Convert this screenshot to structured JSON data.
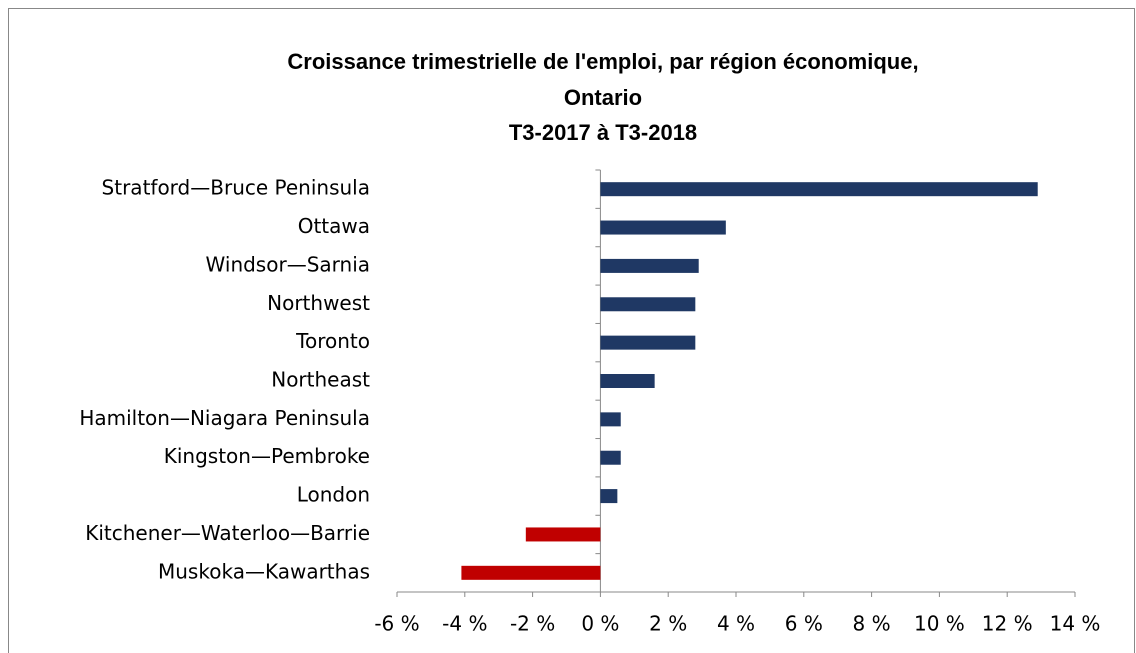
{
  "chart_data": {
    "type": "bar",
    "orientation": "horizontal",
    "title": [
      "Croissance trimestrielle de l'emploi, par région économique,",
      "Ontario",
      "T3-2017 à T3-2018"
    ],
    "categories": [
      "Stratford—Bruce Peninsula",
      "Ottawa",
      "Windsor—Sarnia",
      "Northwest",
      "Toronto",
      "Northeast",
      "Hamilton—Niagara Peninsula",
      "Kingston—Pembroke",
      "London",
      "Kitchener—Waterloo—Barrie",
      "Muskoka—Kawarthas"
    ],
    "values": [
      12.9,
      3.7,
      2.9,
      2.8,
      2.8,
      1.6,
      0.6,
      0.6,
      0.5,
      -2.2,
      -4.1
    ],
    "color": "#1f3864",
    "negative_color": "#c00000",
    "xlim": [
      -6,
      14
    ],
    "xticks": [
      {
        "value": -6,
        "label": "-6 %"
      },
      {
        "value": -4,
        "label": "-4 %"
      },
      {
        "value": -2,
        "label": "-2 %"
      },
      {
        "value": 0,
        "label": "0 %"
      },
      {
        "value": 2,
        "label": "2 %"
      },
      {
        "value": 4,
        "label": "4 %"
      },
      {
        "value": 6,
        "label": "6 %"
      },
      {
        "value": 8,
        "label": "8 %"
      },
      {
        "value": 10,
        "label": "10 %"
      },
      {
        "value": 12,
        "label": "12 %"
      },
      {
        "value": 14,
        "label": "14 %"
      }
    ],
    "grid": false
  }
}
